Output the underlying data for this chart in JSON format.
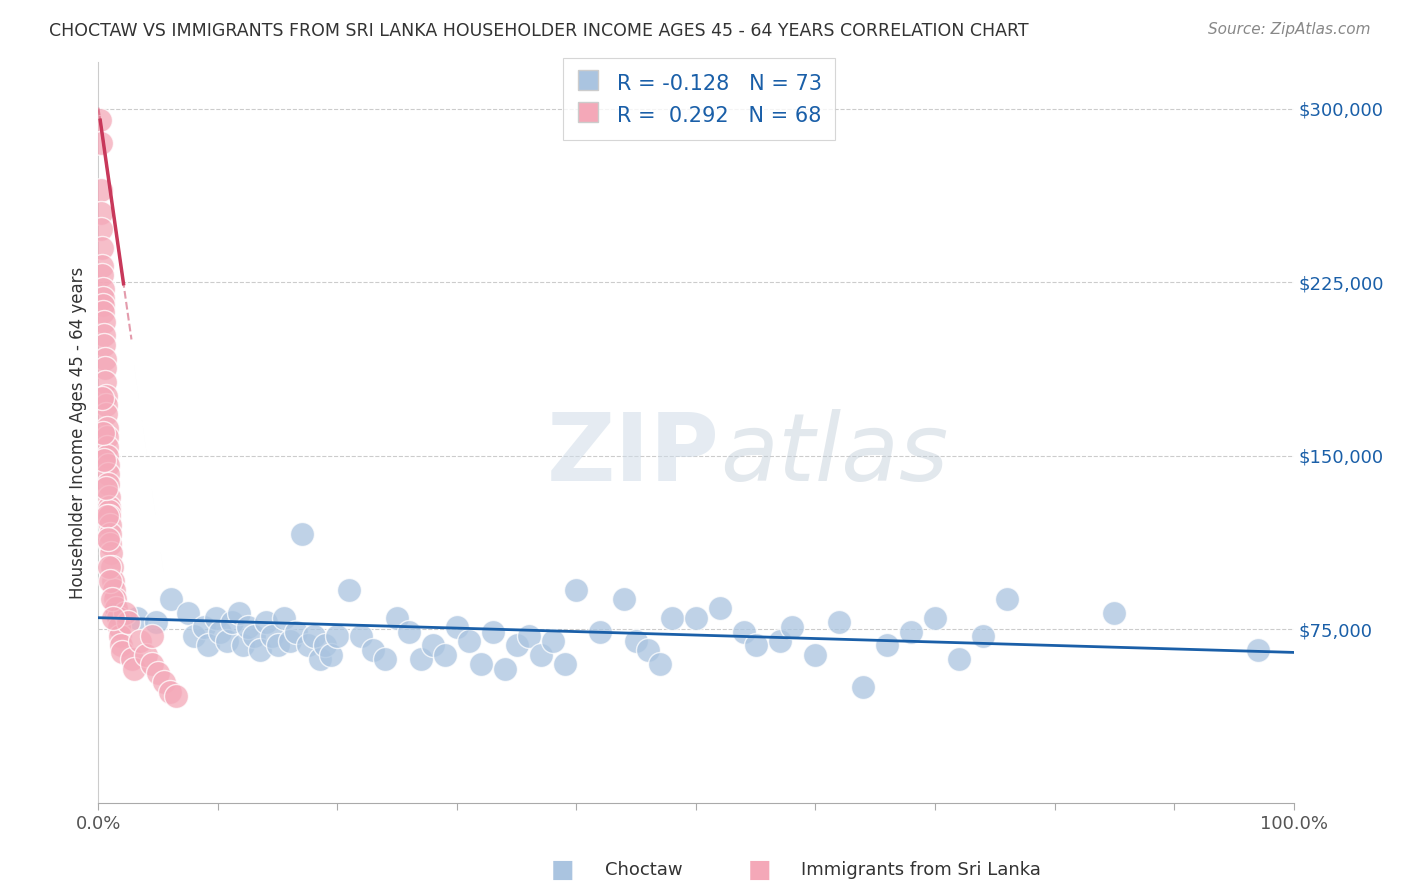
{
  "title": "CHOCTAW VS IMMIGRANTS FROM SRI LANKA HOUSEHOLDER INCOME AGES 45 - 64 YEARS CORRELATION CHART",
  "source": "Source: ZipAtlas.com",
  "ylabel": "Householder Income Ages 45 - 64 years",
  "xlim": [
    0,
    100
  ],
  "ylim": [
    0,
    320000
  ],
  "choctaw_color": "#aac4e0",
  "srilanka_color": "#f4a8b8",
  "choctaw_R": -0.128,
  "choctaw_N": 73,
  "srilanka_R": 0.292,
  "srilanka_N": 68,
  "trend_blue_color": "#1a5fa8",
  "trend_pink_color": "#c8385a",
  "watermark_zip": "ZIP",
  "watermark_atlas": "atlas",
  "legend_blue_label": "Choctaw",
  "legend_pink_label": "Immigrants from Sri Lanka",
  "choctaw_x": [
    1.5,
    3.2,
    4.8,
    6.1,
    7.5,
    8.0,
    8.8,
    9.2,
    9.8,
    10.2,
    10.8,
    11.2,
    11.8,
    12.1,
    12.5,
    13.0,
    13.5,
    14.0,
    14.5,
    15.0,
    15.5,
    16.0,
    16.5,
    17.0,
    17.5,
    18.0,
    18.5,
    19.0,
    19.5,
    20.0,
    21.0,
    22.0,
    23.0,
    24.0,
    25.0,
    26.0,
    27.0,
    28.0,
    29.0,
    30.0,
    31.0,
    32.0,
    33.0,
    34.0,
    35.0,
    36.0,
    37.0,
    38.0,
    39.0,
    40.0,
    42.0,
    44.0,
    45.0,
    46.0,
    47.0,
    48.0,
    50.0,
    52.0,
    54.0,
    55.0,
    57.0,
    58.0,
    60.0,
    62.0,
    64.0,
    66.0,
    68.0,
    70.0,
    72.0,
    74.0,
    76.0,
    85.0,
    97.0
  ],
  "choctaw_y": [
    82000,
    80000,
    78000,
    88000,
    82000,
    72000,
    76000,
    68000,
    80000,
    74000,
    70000,
    78000,
    82000,
    68000,
    76000,
    72000,
    66000,
    78000,
    72000,
    68000,
    80000,
    70000,
    74000,
    116000,
    68000,
    72000,
    62000,
    68000,
    64000,
    72000,
    92000,
    72000,
    66000,
    62000,
    80000,
    74000,
    62000,
    68000,
    64000,
    76000,
    70000,
    60000,
    74000,
    58000,
    68000,
    72000,
    64000,
    70000,
    60000,
    92000,
    74000,
    88000,
    70000,
    66000,
    60000,
    80000,
    80000,
    84000,
    74000,
    68000,
    70000,
    76000,
    64000,
    78000,
    50000,
    68000,
    74000,
    80000,
    62000,
    72000,
    88000,
    82000,
    66000
  ],
  "srilanka_x": [
    0.15,
    0.18,
    0.2,
    0.22,
    0.25,
    0.28,
    0.3,
    0.32,
    0.35,
    0.38,
    0.4,
    0.42,
    0.45,
    0.48,
    0.5,
    0.52,
    0.55,
    0.58,
    0.6,
    0.62,
    0.65,
    0.68,
    0.7,
    0.72,
    0.75,
    0.78,
    0.8,
    0.82,
    0.85,
    0.88,
    0.9,
    0.92,
    0.95,
    0.98,
    1.0,
    1.05,
    1.1,
    1.2,
    1.3,
    1.4,
    1.5,
    1.6,
    1.7,
    1.8,
    1.9,
    2.0,
    2.2,
    2.5,
    2.8,
    3.0,
    3.5,
    4.0,
    4.5,
    5.0,
    5.5,
    6.0,
    6.5,
    0.3,
    0.4,
    0.5,
    0.6,
    0.7,
    0.8,
    0.9,
    1.0,
    1.1,
    1.2,
    4.5
  ],
  "srilanka_y": [
    295000,
    285000,
    265000,
    255000,
    248000,
    240000,
    232000,
    228000,
    222000,
    218000,
    215000,
    212000,
    208000,
    202000,
    198000,
    192000,
    188000,
    182000,
    176000,
    172000,
    168000,
    162000,
    158000,
    154000,
    150000,
    146000,
    142000,
    138000,
    132000,
    128000,
    126000,
    124000,
    120000,
    116000,
    112000,
    108000,
    102000,
    96000,
    92000,
    88000,
    84000,
    80000,
    76000,
    72000,
    68000,
    65000,
    82000,
    78000,
    62000,
    58000,
    70000,
    64000,
    60000,
    56000,
    52000,
    48000,
    46000,
    175000,
    160000,
    148000,
    136000,
    124000,
    114000,
    102000,
    96000,
    88000,
    80000,
    72000
  ]
}
